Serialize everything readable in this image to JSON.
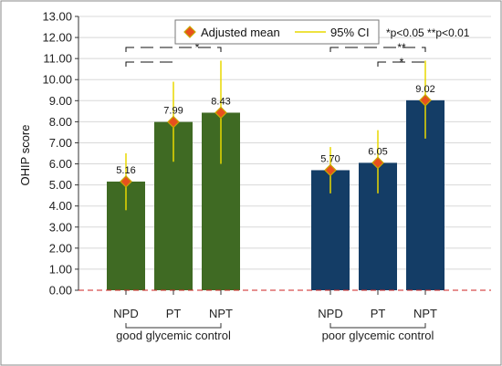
{
  "chart_data": {
    "type": "bar",
    "ylabel": "OHIP score",
    "ylim": [
      0,
      13
    ],
    "ytick_step": 1,
    "grid": true,
    "legend_placement": "top",
    "groups": [
      {
        "label": "good glycemic control",
        "bar_color": "#3f6a23",
        "bars": [
          {
            "category": "NPD",
            "value": 5.16,
            "value_label": "5.16",
            "ci_low": 3.8,
            "ci_high": 6.5
          },
          {
            "category": "PT",
            "value": 7.99,
            "value_label": "7.99",
            "ci_low": 6.1,
            "ci_high": 9.9
          },
          {
            "category": "NPT",
            "value": 8.43,
            "value_label": "8.43",
            "ci_low": 6.0,
            "ci_high": 10.9
          }
        ]
      },
      {
        "label": "poor glycemic control",
        "bar_color": "#143d66",
        "bars": [
          {
            "category": "NPD",
            "value": 5.7,
            "value_label": "5.70",
            "ci_low": 4.6,
            "ci_high": 6.8
          },
          {
            "category": "PT",
            "value": 6.05,
            "value_label": "6.05",
            "ci_low": 4.6,
            "ci_high": 7.6
          },
          {
            "category": "NPT",
            "value": 9.02,
            "value_label": "9.02",
            "ci_low": 7.2,
            "ci_high": 10.9
          }
        ]
      }
    ],
    "legend": {
      "mean_label": "Adjusted mean",
      "ci_label": "95% CI"
    },
    "significance_note": "*p<0.05 **p<0.01",
    "comparisons": [
      {
        "group": 0,
        "from": 0,
        "to": 1,
        "level": 1,
        "label": ""
      },
      {
        "group": 0,
        "from": 0,
        "to": 2,
        "level": 2,
        "label": "*"
      },
      {
        "group": 1,
        "from": 0,
        "to": 2,
        "level": 2,
        "label": "**"
      },
      {
        "group": 1,
        "from": 1,
        "to": 2,
        "level": 1,
        "label": "*"
      }
    ],
    "colors": {
      "mean_marker_fill": "#e8501e",
      "mean_marker_stroke": "#c8a800",
      "ci_line": "#e8d800",
      "zero_line": "#cc2222",
      "grid": "#d8d8d8"
    }
  }
}
